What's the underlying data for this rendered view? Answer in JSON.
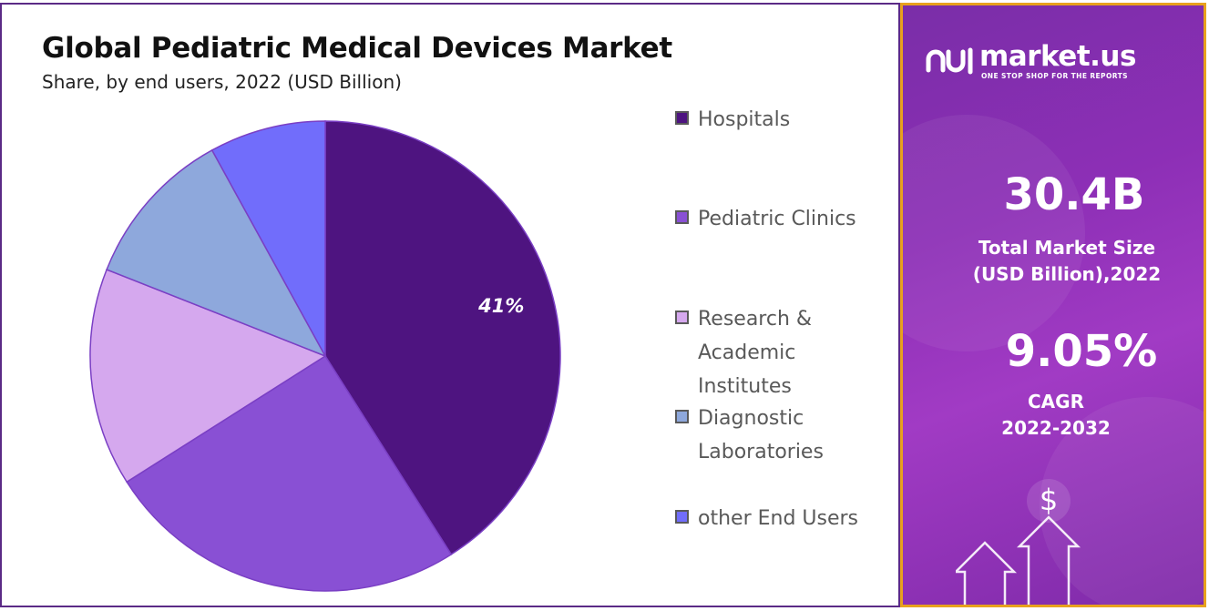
{
  "title": "Global Pediatric Medical Devices Market",
  "subtitle": "Share, by end users, 2022 (USD Billion)",
  "chart_data": {
    "type": "pie",
    "title": "Global Pediatric Medical Devices Market",
    "subtitle": "Share, by end users, 2022 (USD Billion)",
    "slices": [
      {
        "name": "Hospitals",
        "value": 41,
        "color": "#4e1480",
        "label": "41%"
      },
      {
        "name": "Pediatric Clinics",
        "value": 25,
        "color": "#8950d4",
        "label": ""
      },
      {
        "name": "Research & Academic Institutes",
        "value": 15,
        "color": "#d5a8ee",
        "label": ""
      },
      {
        "name": "Diagnostic Laboratories",
        "value": 11,
        "color": "#8ea8dc",
        "label": ""
      },
      {
        "name": "other End Users",
        "value": 8,
        "color": "#716dfb",
        "label": ""
      }
    ],
    "start_angle": "12 o'clock",
    "direction": "clockwise",
    "legend_position": "right"
  },
  "legend": {
    "items": [
      {
        "label": "Hospitals",
        "color": "#4e1480"
      },
      {
        "label": "Pediatric Clinics",
        "color": "#8950d4"
      },
      {
        "label": "Research & Academic Institutes",
        "color": "#d5a8ee"
      },
      {
        "label": "Diagnostic Laboratories",
        "color": "#8ea8dc"
      },
      {
        "label": "other End Users",
        "color": "#716dfb"
      }
    ]
  },
  "sidebar": {
    "brand_name": "market.us",
    "brand_tagline": "ONE STOP SHOP FOR THE REPORTS",
    "market_size_value": "30.4B",
    "market_size_label_line1": "Total Market Size",
    "market_size_label_line2": "(USD Billion),2022",
    "cagr_value": "9.05%",
    "cagr_label_line1": "CAGR",
    "cagr_label_line2": "2022-2032",
    "dollar_symbol": "$"
  },
  "colors": {
    "panel_border": "#5b2a86",
    "sidebar_border": "#e8a11e",
    "sidebar_bg": "#8d2fb6"
  }
}
